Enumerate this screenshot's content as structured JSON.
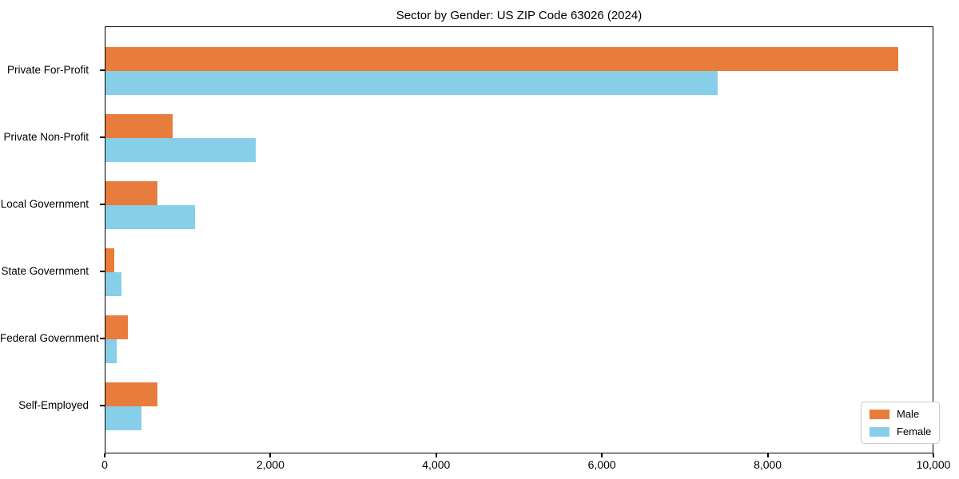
{
  "title": "Sector by Gender: US ZIP Code 63026 (2024)",
  "chart_data": {
    "type": "bar",
    "orientation": "horizontal",
    "title": "Sector by Gender: US ZIP Code 63026 (2024)",
    "categories": [
      "Private For-Profit",
      "Private Non-Profit",
      "Local Government",
      "State Government",
      "Federal Government",
      "Self-Employed"
    ],
    "series": [
      {
        "name": "Male",
        "color": "#e87c3c",
        "values": [
          9580,
          810,
          630,
          110,
          270,
          630
        ]
      },
      {
        "name": "Female",
        "color": "#87cee9",
        "values": [
          7400,
          1820,
          1080,
          190,
          140,
          430
        ]
      }
    ],
    "xlabel": "",
    "ylabel": "",
    "xlim": [
      0,
      10000
    ],
    "xticks": [
      0,
      2000,
      4000,
      6000,
      8000,
      10000
    ],
    "xtick_labels": [
      "0",
      "2,000",
      "4,000",
      "6,000",
      "8,000",
      "10,000"
    ],
    "grid": false,
    "legend_position": "lower right",
    "legend_items": [
      {
        "label": "Male",
        "color": "#e87c3c"
      },
      {
        "label": "Female",
        "color": "#87cee9"
      }
    ]
  }
}
